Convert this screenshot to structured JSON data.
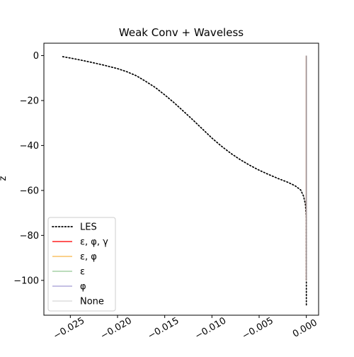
{
  "chart_data": {
    "type": "line",
    "title": "Weak Conv + Waveless",
    "xlabel": "",
    "ylabel": "z",
    "xlim": [
      -0.0278,
      0.0013
    ],
    "ylim": [
      -115.5,
      5.5
    ],
    "xticks": [
      {
        "value": -0.025,
        "label": "−0.025"
      },
      {
        "value": -0.02,
        "label": "−0.020"
      },
      {
        "value": -0.015,
        "label": "−0.015"
      },
      {
        "value": -0.01,
        "label": "−0.010"
      },
      {
        "value": -0.005,
        "label": "−0.005"
      },
      {
        "value": 0.0,
        "label": "0.000"
      }
    ],
    "yticks": [
      {
        "value": 0,
        "label": "0"
      },
      {
        "value": -20,
        "label": "−20"
      },
      {
        "value": -40,
        "label": "−40"
      },
      {
        "value": -60,
        "label": "−60"
      },
      {
        "value": -80,
        "label": "−80"
      },
      {
        "value": -100,
        "label": "−100"
      }
    ],
    "grid": false,
    "legend_position": "lower-left",
    "series": [
      {
        "name": "LES",
        "color": "#000000",
        "style": "dotted",
        "opacity": 1,
        "points": [
          [
            -0.0258,
            -0.5
          ],
          [
            -0.0245,
            -1.5
          ],
          [
            -0.023,
            -2.8
          ],
          [
            -0.0215,
            -4.2
          ],
          [
            -0.02,
            -5.8
          ],
          [
            -0.019,
            -7.2
          ],
          [
            -0.018,
            -9.0
          ],
          [
            -0.017,
            -11.5
          ],
          [
            -0.016,
            -14.2
          ],
          [
            -0.015,
            -17.5
          ],
          [
            -0.014,
            -21.0
          ],
          [
            -0.013,
            -24.8
          ],
          [
            -0.012,
            -28.7
          ],
          [
            -0.011,
            -32.7
          ],
          [
            -0.01,
            -36.7
          ],
          [
            -0.009,
            -40.3
          ],
          [
            -0.008,
            -43.5
          ],
          [
            -0.007,
            -46.3
          ],
          [
            -0.006,
            -48.8
          ],
          [
            -0.005,
            -51.0
          ],
          [
            -0.004,
            -52.9
          ],
          [
            -0.003,
            -54.7
          ],
          [
            -0.002,
            -56.3
          ],
          [
            -0.0012,
            -57.9
          ],
          [
            -0.0006,
            -59.8
          ],
          [
            -0.0003,
            -62.5
          ],
          [
            -0.0001,
            -66.0
          ],
          [
            0.0,
            -72.0
          ],
          [
            0.0,
            -111.5
          ]
        ]
      },
      {
        "name": "ε, φ, γ",
        "color": "#ff0000",
        "style": "solid",
        "opacity": 0.75,
        "points": [
          [
            0.0,
            0.0
          ],
          [
            0.0,
            -100.0
          ]
        ]
      },
      {
        "name": "ε, φ",
        "color": "#f5a623",
        "style": "solid",
        "opacity": 0.6,
        "points": [
          [
            0.0,
            0.0
          ],
          [
            0.0,
            -100.0
          ]
        ]
      },
      {
        "name": "ε",
        "color": "#66b266",
        "style": "solid",
        "opacity": 0.5,
        "points": [
          [
            0.0,
            0.0
          ],
          [
            0.0,
            -100.0
          ]
        ]
      },
      {
        "name": "φ",
        "color": "#7b6fc2",
        "style": "solid",
        "opacity": 0.5,
        "points": [
          [
            0.0,
            0.0
          ],
          [
            0.0,
            -100.0
          ]
        ]
      },
      {
        "name": "None",
        "color": "#b0b0b0",
        "style": "solid",
        "opacity": 0.35,
        "points": [
          [
            0.0,
            0.0
          ],
          [
            0.0,
            -100.0
          ]
        ]
      }
    ]
  }
}
